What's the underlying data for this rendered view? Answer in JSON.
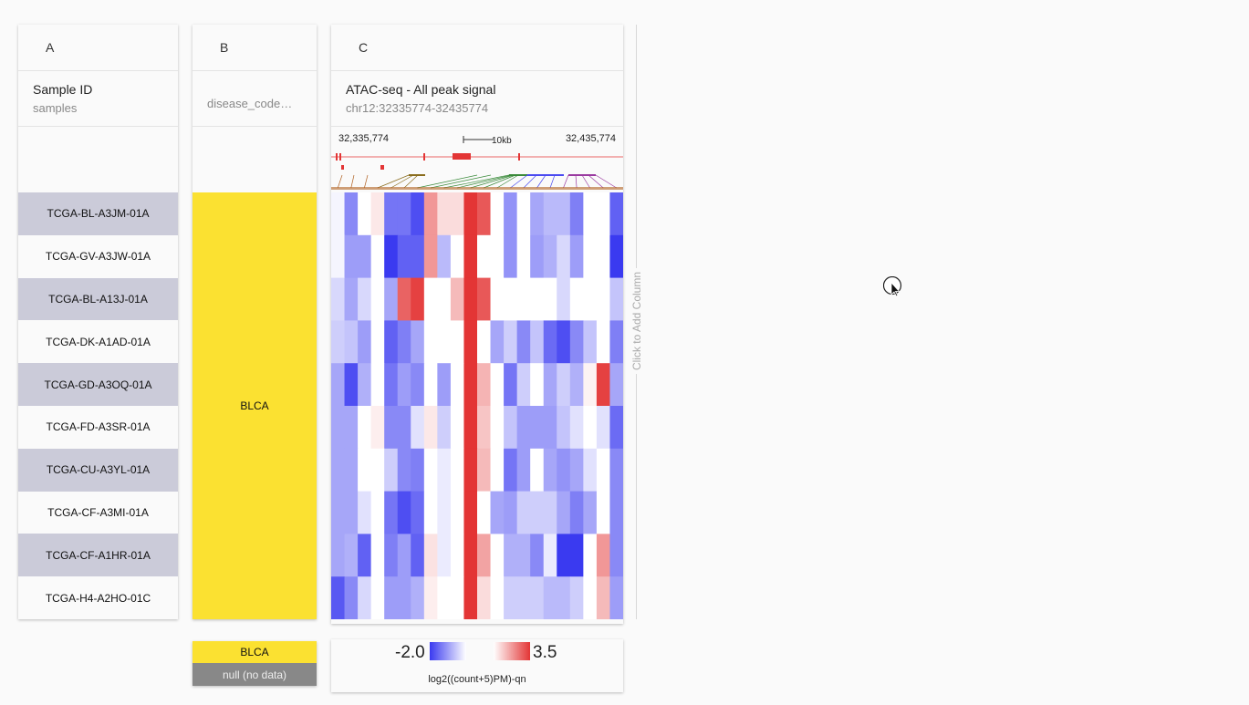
{
  "columns": {
    "a": {
      "letter": "A",
      "title": "Sample ID",
      "subtitle": "samples"
    },
    "b": {
      "letter": "B",
      "title": "",
      "subtitle": "disease_code…"
    },
    "c": {
      "letter": "C",
      "title": "ATAC-seq - All peak signal",
      "subtitle": "chr12:32335774-32435774"
    }
  },
  "samples": [
    "TCGA-BL-A3JM-01A",
    "TCGA-GV-A3JW-01A",
    "TCGA-BL-A13J-01A",
    "TCGA-DK-A1AD-01A",
    "TCGA-GD-A3OQ-01A",
    "TCGA-FD-A3SR-01A",
    "TCGA-CU-A3YL-01A",
    "TCGA-CF-A3MI-01A",
    "TCGA-CF-A1HR-01A",
    "TCGA-H4-A2HO-01C"
  ],
  "disease_value": "BLCA",
  "track": {
    "start_label": "32,335,774",
    "end_label": "32,435,774",
    "scale_label": "10kb"
  },
  "add_column_label": "Click to Add Column",
  "legend_b": {
    "value": "BLCA",
    "null_label": "null (no data)"
  },
  "legend_c": {
    "min": "-2.0",
    "max": "3.5",
    "unit": "log2((count+5)PM)-qn"
  },
  "colors": {
    "yellow": "#fbe131",
    "row_alt": "#cbcbd9",
    "low": "#3a3af0",
    "high": "#e33535"
  },
  "heatmap": [
    [
      -0.1,
      -1.2,
      0.0,
      0.4,
      -1.4,
      -1.4,
      -1.8,
      1.8,
      0.6,
      0.6,
      3.5,
      2.9,
      0.0,
      -1.1,
      0.0,
      -0.9,
      -0.7,
      -0.7,
      -1.3,
      0.0,
      0.0,
      -1.6
    ],
    [
      -0.1,
      -1.0,
      -1.0,
      0.0,
      -2.0,
      -1.6,
      -1.6,
      1.8,
      -0.7,
      0.0,
      3.5,
      0.0,
      0.0,
      -1.1,
      0.0,
      -1.0,
      -0.8,
      -0.4,
      -1.0,
      0.0,
      0.0,
      -2.0
    ],
    [
      -0.4,
      -0.9,
      -0.4,
      0.0,
      -0.9,
      2.7,
      3.3,
      0.0,
      0.0,
      1.2,
      3.5,
      2.9,
      0.0,
      0.0,
      0.0,
      0.0,
      0.0,
      -0.4,
      0.0,
      0.0,
      0.0,
      -0.6
    ],
    [
      -0.5,
      -0.6,
      -1.0,
      0.0,
      -1.6,
      -1.3,
      -0.9,
      0.0,
      0.0,
      0.0,
      3.5,
      0.0,
      -0.9,
      -0.5,
      -1.2,
      -0.6,
      -1.5,
      -1.8,
      -1.2,
      -0.6,
      0.0,
      -1.3
    ],
    [
      -0.9,
      -1.8,
      -0.8,
      0.0,
      -1.4,
      -1.0,
      -1.2,
      0.0,
      -1.0,
      0.0,
      3.5,
      1.3,
      0.0,
      -1.4,
      -0.5,
      0.0,
      -0.9,
      -0.5,
      -0.8,
      0.2,
      3.3,
      -0.9
    ],
    [
      -0.9,
      -0.9,
      0.0,
      0.3,
      -1.2,
      -1.2,
      -0.3,
      0.4,
      -0.5,
      0.0,
      3.5,
      1.0,
      0.0,
      -0.6,
      -1.0,
      -1.0,
      -1.0,
      -0.6,
      -0.3,
      0.0,
      -0.3,
      -1.5
    ],
    [
      -0.9,
      -0.9,
      0.0,
      0.0,
      -0.5,
      -1.2,
      -1.3,
      0.0,
      -0.2,
      0.0,
      3.5,
      1.2,
      0.0,
      -1.4,
      -1.0,
      0.0,
      -0.9,
      -1.1,
      -0.9,
      -0.3,
      0.0,
      -1.2
    ],
    [
      -0.9,
      -0.9,
      -0.3,
      0.0,
      -1.4,
      -1.8,
      -1.5,
      0.0,
      -0.2,
      0.0,
      3.5,
      0.0,
      -0.9,
      -1.0,
      -0.5,
      -0.5,
      -0.5,
      -0.9,
      -1.3,
      -0.9,
      0.0,
      -1.2
    ],
    [
      -0.9,
      -0.8,
      -1.6,
      0.0,
      -1.3,
      -1.0,
      -1.6,
      0.5,
      -0.2,
      0.0,
      3.5,
      1.6,
      0.0,
      -0.8,
      -0.8,
      -1.2,
      -0.2,
      -2.0,
      -2.0,
      0.0,
      1.8,
      -1.2
    ],
    [
      -1.7,
      -1.2,
      -0.4,
      0.0,
      -1.0,
      -1.0,
      -0.8,
      0.3,
      0.0,
      0.0,
      3.5,
      0.6,
      0.0,
      -0.5,
      -0.5,
      -0.5,
      -0.7,
      -0.7,
      -0.5,
      0.0,
      1.2,
      -1.0
    ]
  ]
}
